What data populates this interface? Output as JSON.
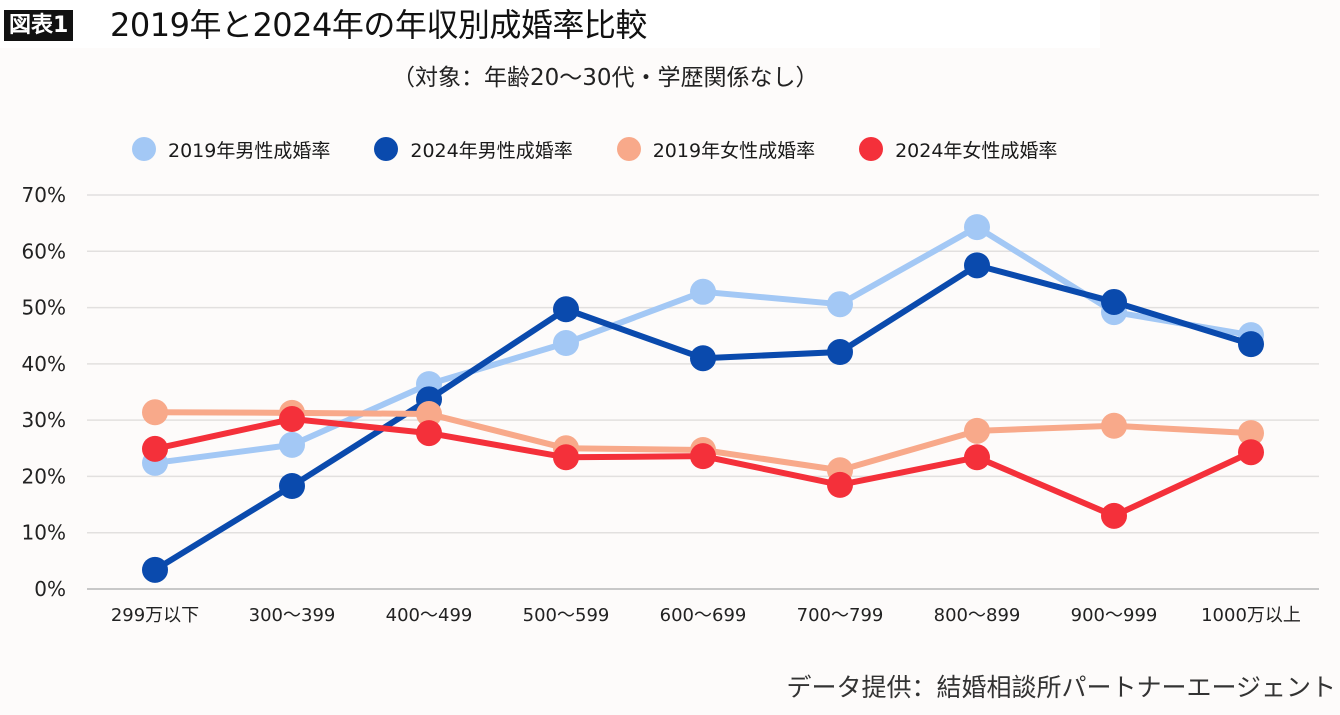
{
  "header": {
    "badge": "図表1",
    "title": "2019年と2024年の年収別成婚率比較",
    "subtitle": "（対象：年齢20〜30代・学歴関係なし）"
  },
  "footer": {
    "source": "データ提供：結婚相談所パートナーエージェント"
  },
  "chart_data": {
    "type": "line",
    "title": "2019年と2024年の年収別成婚率比較",
    "subtitle": "（対象：年齢20〜30代・学歴関係なし）",
    "xlabel": "",
    "ylabel": "",
    "categories": [
      "299万以下",
      "300〜399",
      "400〜499",
      "500〜599",
      "600〜699",
      "700〜799",
      "800〜899",
      "900〜999",
      "1000万以上"
    ],
    "y_ticks": [
      0,
      10,
      20,
      30,
      40,
      50,
      60,
      70
    ],
    "y_tick_labels": [
      "0%",
      "10%",
      "20%",
      "30%",
      "40%",
      "50%",
      "60%",
      "70%"
    ],
    "ylim": [
      0,
      70
    ],
    "y_unit": "%",
    "grid": true,
    "legend_position": "top",
    "series": [
      {
        "name": "2019年男性成婚率",
        "color": "#a3c8f5",
        "values": [
          22.4,
          25.6,
          36.4,
          43.7,
          52.8,
          50.6,
          64.3,
          49.2,
          45.1
        ]
      },
      {
        "name": "2024年男性成婚率",
        "color": "#0a4aad",
        "values": [
          3.4,
          18.3,
          33.7,
          49.7,
          41.0,
          42.1,
          57.5,
          51.0,
          43.5
        ]
      },
      {
        "name": "2019年女性成婚率",
        "color": "#f8a98a",
        "values": [
          31.4,
          31.3,
          31.1,
          25.0,
          24.7,
          21.1,
          28.1,
          29.0,
          27.7
        ]
      },
      {
        "name": "2024年女性成婚率",
        "color": "#f4303a",
        "values": [
          24.9,
          30.2,
          27.7,
          23.4,
          23.6,
          18.5,
          23.4,
          13.0,
          24.3
        ]
      }
    ],
    "source": "データ提供：結婚相談所パートナーエージェント"
  }
}
